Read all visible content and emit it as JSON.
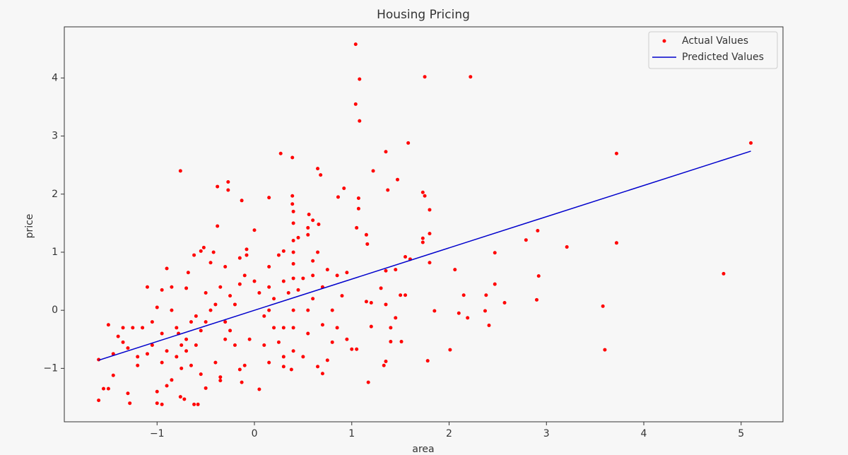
{
  "chart_data": {
    "type": "scatter",
    "title": "Housing Pricing",
    "xlabel": "area",
    "ylabel": "price",
    "legend": "upper right",
    "grid": false,
    "xlim": [
      -1.953,
      5.43
    ],
    "ylim": [
      -1.92,
      4.88
    ],
    "xticks": [
      {
        "value": -1,
        "label": "−1"
      },
      0,
      1,
      2,
      3,
      4,
      5
    ],
    "yticks": [
      {
        "value": -1,
        "label": "−1"
      },
      0,
      1,
      2,
      3,
      4
    ],
    "series": [
      {
        "name": "Actual Values",
        "type": "scatter",
        "color": "#ff0000",
        "x": [
          1.04,
          1.08,
          1.75,
          2.22,
          1.04,
          1.08,
          1.58,
          1.35,
          5.1,
          3.72,
          0.27,
          0.39,
          -0.76,
          0.65,
          0.68,
          1.22,
          1.37,
          1.47,
          1.73,
          1.75,
          1.8,
          -0.38,
          -0.27,
          -0.27,
          -0.13,
          0.15,
          0.39,
          0.39,
          0.92,
          0.86,
          1.07,
          1.07,
          0.56,
          0.6,
          0.66,
          0.55,
          1.05,
          1.15,
          1.16,
          0,
          -0.38,
          1.73,
          1.73,
          1.8,
          2.91,
          2.79,
          3.21,
          3.72,
          4.82,
          2.47,
          1.55,
          1.6,
          1.8,
          2.06,
          2.92,
          2.47,
          2.15,
          2.38,
          2.9,
          2.57,
          3.58,
          2.37,
          1.85,
          2.1,
          2.19,
          2.41,
          2.01,
          3.6,
          1.78,
          1.17,
          1.33,
          1.35,
          1.51,
          1.4,
          1.4,
          1.45,
          1.5,
          1.55,
          1.3,
          1.35,
          1.45,
          1.35,
          1.2,
          1.15,
          1.2,
          1,
          1.05,
          0.95,
          0.8,
          0.7,
          0.65,
          0.75,
          0.38,
          0.3,
          0.15,
          0.05,
          -0.1,
          -0.15,
          -0.13,
          -0.35,
          -0.35,
          -0.5,
          -0.58,
          -0.62,
          -0.72,
          -0.76,
          -0.95,
          -1,
          -1.28,
          -1.3,
          -1.6,
          -1.55,
          -1.5,
          -1.45,
          -1.2,
          -1,
          -0.9,
          -0.85,
          -0.75,
          -0.65,
          -0.55,
          -0.7,
          -0.8,
          -0.9,
          -0.95,
          -1.05,
          -1.1,
          -1.2,
          -1.3,
          -1.4,
          -1.35,
          -1.5,
          -1.6,
          -1.45,
          -1.15,
          -1.05,
          -1.1,
          -0.95,
          -0.9,
          -0.85,
          -1,
          -0.85,
          -0.78,
          -0.7,
          -0.65,
          -0.6,
          -0.55,
          -0.5,
          -0.45,
          -0.7,
          -0.68,
          -0.62,
          -0.55,
          -0.52,
          -0.45,
          -0.42,
          -0.3,
          -0.35,
          -0.4,
          -0.3,
          -0.25,
          -0.2,
          -0.15,
          -0.1,
          -0.15,
          -0.08,
          -0.08,
          0,
          0.05,
          0.1,
          0.15,
          0.15,
          0.15,
          0.2,
          0.25,
          0.3,
          0.3,
          0.35,
          0.4,
          0.4,
          0.4,
          0.4,
          0.4,
          0.4,
          0.4,
          0.4,
          0.4,
          0.45,
          0.5,
          0.55,
          0.55,
          0.55,
          0.6,
          0.6,
          0.6,
          0.65,
          0.7,
          0.75,
          0.8,
          0.85,
          0.9,
          0.95,
          0.85,
          0.5,
          0.3,
          0.2,
          -0.05,
          -0.2,
          -0.4,
          -0.3,
          0.1,
          -0.6,
          -0.5,
          0.7,
          0.25,
          0.3,
          0.45,
          -0.25,
          -0.95,
          -1.25,
          -1.35,
          -0.8,
          -0.75
        ],
        "values": [
          4.58,
          3.98,
          4.02,
          4.02,
          3.55,
          3.26,
          2.88,
          2.73,
          2.88,
          2.7,
          2.7,
          2.63,
          2.4,
          2.44,
          2.33,
          2.4,
          2.07,
          2.25,
          2.03,
          1.97,
          1.73,
          2.13,
          2.07,
          2.21,
          1.89,
          1.94,
          1.97,
          1.83,
          2.1,
          1.95,
          1.75,
          1.93,
          1.65,
          1.55,
          1.48,
          1.42,
          1.42,
          1.3,
          1.14,
          1.38,
          1.45,
          1.24,
          1.17,
          1.32,
          1.37,
          1.21,
          1.09,
          1.16,
          0.63,
          0.99,
          0.92,
          0.88,
          0.82,
          0.7,
          0.59,
          0.45,
          0.26,
          0.26,
          0.18,
          0.13,
          0.07,
          -0.01,
          -0.01,
          -0.05,
          -0.13,
          -0.26,
          -0.68,
          -0.68,
          -0.87,
          -1.24,
          -0.95,
          -0.88,
          -0.54,
          -0.54,
          -0.3,
          -0.13,
          0.26,
          0.26,
          0.38,
          0.68,
          0.7,
          0.1,
          0.13,
          0.15,
          -0.28,
          -0.67,
          -0.67,
          -0.5,
          -0.55,
          -1.09,
          -0.97,
          -0.86,
          -1.02,
          -0.97,
          -0.9,
          -1.36,
          -0.95,
          -1.02,
          -1.24,
          -1.15,
          -1.21,
          -1.34,
          -1.62,
          -1.62,
          -1.53,
          -1.49,
          -1.62,
          -1.6,
          -1.6,
          -1.43,
          -1.55,
          -1.35,
          -1.35,
          -1.12,
          -0.95,
          -1.4,
          -1.3,
          -1.2,
          -1,
          -0.95,
          -1.1,
          -0.7,
          -0.8,
          -0.7,
          -0.9,
          -0.6,
          -0.75,
          -0.8,
          -0.65,
          -0.45,
          -0.3,
          -0.25,
          -0.85,
          -0.75,
          -0.3,
          -0.2,
          0.4,
          0.35,
          0.72,
          0.4,
          0.05,
          0,
          -0.4,
          -0.5,
          -0.2,
          -0.6,
          -0.35,
          -0.2,
          0,
          0.38,
          0.65,
          0.95,
          1.02,
          1.08,
          0.82,
          1,
          0.75,
          0.4,
          0.1,
          -0.2,
          -0.35,
          0.1,
          0.45,
          0.6,
          0.9,
          0.95,
          1.05,
          0.5,
          0.3,
          -0.1,
          0,
          0.4,
          0.75,
          -0.3,
          -0.55,
          -0.3,
          0.5,
          0.3,
          0,
          0.55,
          0.8,
          1,
          1.2,
          1.5,
          1.7,
          -0.3,
          -0.7,
          0.35,
          0.55,
          1.3,
          0,
          -0.4,
          0.85,
          0.6,
          0.2,
          1,
          0.4,
          0.7,
          0,
          0.6,
          0.25,
          0.65,
          -0.3,
          -0.8,
          -0.8,
          0.2,
          -0.5,
          -0.6,
          -0.9,
          -0.5,
          -0.6,
          -0.1,
          0.3,
          -0.25,
          0.95,
          1.02,
          1.25,
          0.25,
          -0.4,
          -0.3,
          -0.55,
          -0.3,
          -0.6
        ]
      },
      {
        "name": "Predicted Values",
        "type": "line",
        "color": "#0000cc",
        "x": [
          -1.6,
          5.1
        ],
        "values": [
          -0.86,
          2.74
        ]
      }
    ]
  }
}
